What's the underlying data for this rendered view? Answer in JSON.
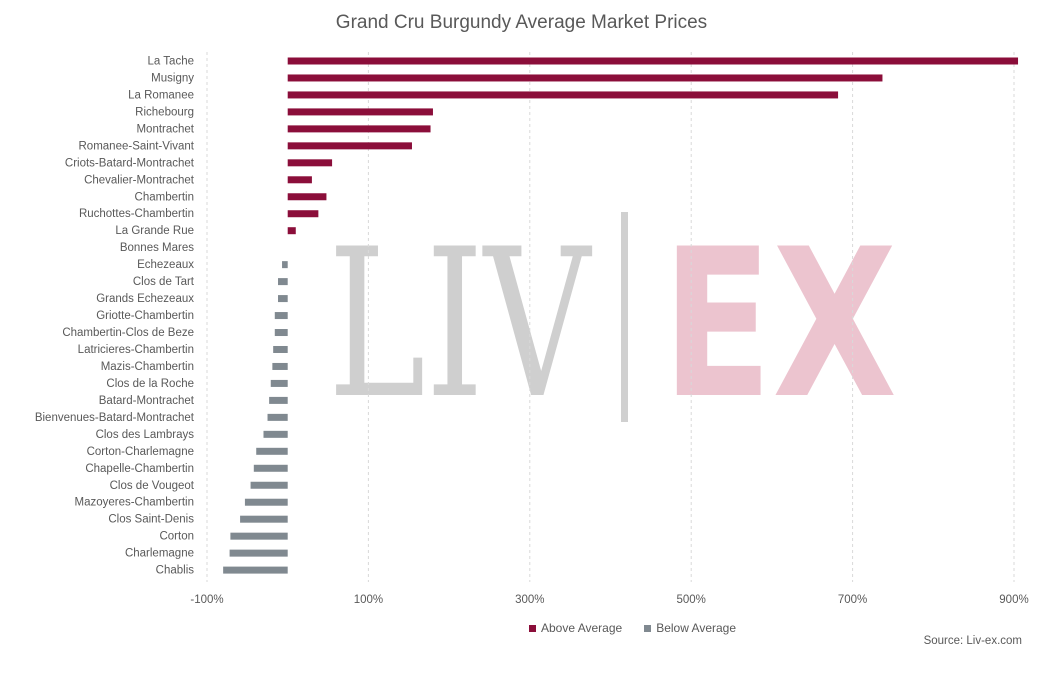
{
  "chart_data": {
    "type": "bar",
    "orientation": "horizontal",
    "title": "Grand Cru Burgundy Average Market Prices",
    "categories": [
      "La Tache",
      "Musigny",
      "La Romanee",
      "Richebourg",
      "Montrachet",
      "Romanee-Saint-Vivant",
      "Criots-Batard-Montrachet",
      "Chevalier-Montrachet",
      "Chambertin",
      "Ruchottes-Chambertin",
      "La Grande Rue",
      "Bonnes Mares",
      "Echezeaux",
      "Clos de Tart",
      "Grands Echezeaux",
      "Griotte-Chambertin",
      "Chambertin-Clos de Beze",
      "Latricieres-Chambertin",
      "Mazis-Chambertin",
      "Clos de la Roche",
      "Batard-Montrachet",
      "Bienvenues-Batard-Montrachet",
      "Clos des Lambrays",
      "Corton-Charlemagne",
      "Chapelle-Chambertin",
      "Clos de Vougeot",
      "Mazoyeres-Chambertin",
      "Clos Saint-Denis",
      "Corton",
      "Charlemagne",
      "Chablis"
    ],
    "values": [
      905,
      737,
      682,
      180,
      177,
      154,
      55,
      30,
      48,
      38,
      10,
      0,
      -7,
      -12,
      -12,
      -16,
      -16,
      -18,
      -19,
      -21,
      -23,
      -25,
      -30,
      -39,
      -42,
      -46,
      -53,
      -59,
      -71,
      -72,
      -80
    ],
    "series": [
      {
        "name": "Above Average",
        "color": "#8b0e3a"
      },
      {
        "name": "Below Average",
        "color": "#808990"
      }
    ],
    "x_ticks": [
      "-100%",
      "100%",
      "300%",
      "500%",
      "700%",
      "900%"
    ],
    "x_tick_values": [
      -100,
      100,
      300,
      500,
      700,
      900
    ],
    "xlim": [
      -100,
      910
    ],
    "grid": true,
    "grid_style": "dashed",
    "legend_position": "bottom",
    "watermark": "LIV-EX"
  },
  "source_text": "Source: Liv-ex.com"
}
